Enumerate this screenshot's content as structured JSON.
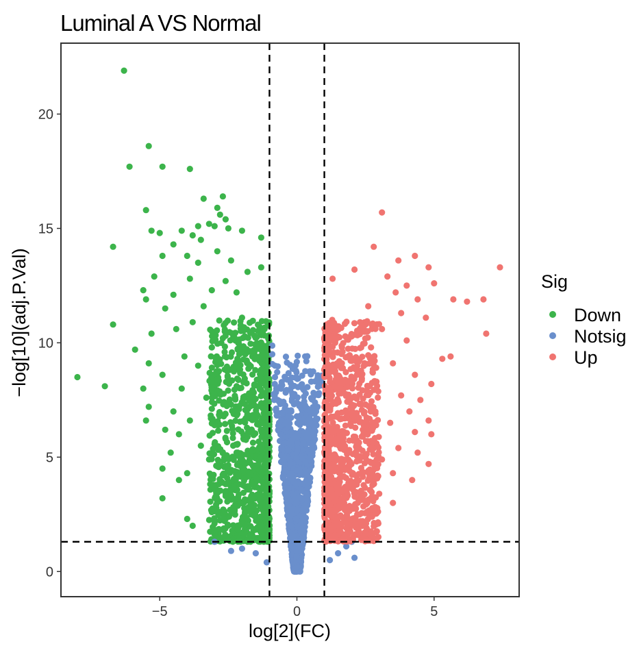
{
  "chart_data": {
    "type": "scatter",
    "title": "Luminal A VS Normal",
    "xlabel": "log[2](FC)",
    "ylabel": "−log[10](adj.P.Val)",
    "xlim": [
      -8.6,
      8.1
    ],
    "ylim": [
      -1.1,
      23.1
    ],
    "x_ticks": [
      -5,
      0,
      5
    ],
    "x_tick_labels": [
      "−5",
      "0",
      "5"
    ],
    "y_ticks": [
      0,
      5,
      10,
      15,
      20
    ],
    "y_tick_labels": [
      "0",
      "5",
      "10",
      "15",
      "20"
    ],
    "grid": false,
    "thresholds": {
      "log2fc": [
        -1,
        1
      ],
      "neg_log10_padj": 1.3
    },
    "legend": {
      "title": "Sig",
      "position": "right",
      "entries": [
        {
          "name": "Down",
          "color": "#3cb44b"
        },
        {
          "name": "Notsig",
          "color": "#6a8fcc"
        },
        {
          "name": "Up",
          "color": "#f07470"
        }
      ]
    },
    "series": [
      {
        "name": "Down",
        "color": "#3cb44b",
        "points": [
          [
            -6.3,
            21.9
          ],
          [
            -5.4,
            18.6
          ],
          [
            -6.1,
            17.7
          ],
          [
            -4.9,
            17.7
          ],
          [
            -3.9,
            17.6
          ],
          [
            -2.7,
            16.4
          ],
          [
            -3.4,
            16.3
          ],
          [
            -2.9,
            15.9
          ],
          [
            -2.8,
            15.6
          ],
          [
            -5.5,
            15.8
          ],
          [
            -3.2,
            15.2
          ],
          [
            -2.6,
            15.4
          ],
          [
            -3.6,
            15.1
          ],
          [
            -2.5,
            15.0
          ],
          [
            -5.3,
            14.9
          ],
          [
            -5.0,
            14.8
          ],
          [
            -4.2,
            14.9
          ],
          [
            -3.0,
            15.1
          ],
          [
            -3.8,
            14.7
          ],
          [
            -2.0,
            14.9
          ],
          [
            -4.5,
            14.3
          ],
          [
            -3.5,
            14.5
          ],
          [
            -1.3,
            14.6
          ],
          [
            -6.7,
            14.2
          ],
          [
            -4.0,
            13.8
          ],
          [
            -2.9,
            14.0
          ],
          [
            -2.4,
            13.6
          ],
          [
            -4.9,
            13.8
          ],
          [
            -3.6,
            13.5
          ],
          [
            -1.8,
            13.1
          ],
          [
            -1.3,
            13.3
          ],
          [
            -5.2,
            12.9
          ],
          [
            -3.9,
            12.8
          ],
          [
            -2.6,
            12.7
          ],
          [
            -3.1,
            12.3
          ],
          [
            -4.5,
            12.1
          ],
          [
            -5.6,
            12.3
          ],
          [
            -5.5,
            11.9
          ],
          [
            -2.2,
            12.2
          ],
          [
            -3.4,
            11.6
          ],
          [
            -4.8,
            11.5
          ],
          [
            -6.7,
            10.8
          ],
          [
            -2.0,
            11.1
          ],
          [
            -3.8,
            10.9
          ],
          [
            -4.4,
            10.6
          ],
          [
            -5.3,
            10.4
          ],
          [
            -2.7,
            10.2
          ],
          [
            -3.1,
            9.8
          ],
          [
            -5.9,
            9.7
          ],
          [
            -4.1,
            9.4
          ],
          [
            -2.1,
            9.5
          ],
          [
            -5.4,
            9.1
          ],
          [
            -3.6,
            9.0
          ],
          [
            -4.9,
            8.6
          ],
          [
            -2.9,
            8.4
          ],
          [
            -8.0,
            8.5
          ],
          [
            -5.6,
            8.0
          ],
          [
            -7.0,
            8.1
          ],
          [
            -4.2,
            8.0
          ],
          [
            -3.3,
            7.6
          ],
          [
            -5.4,
            7.2
          ],
          [
            -4.5,
            7.0
          ],
          [
            -2.4,
            7.3
          ],
          [
            -5.5,
            6.6
          ],
          [
            -3.9,
            6.6
          ],
          [
            -4.8,
            6.2
          ],
          [
            -3.0,
            6.4
          ],
          [
            -4.3,
            6.0
          ],
          [
            -2.6,
            5.8
          ],
          [
            -3.5,
            5.5
          ],
          [
            -4.6,
            5.2
          ],
          [
            -3.2,
            4.9
          ],
          [
            -2.2,
            5.2
          ],
          [
            -4.9,
            4.5
          ],
          [
            -4.0,
            4.3
          ],
          [
            -4.3,
            4.0
          ],
          [
            -3.0,
            3.6
          ],
          [
            -4.9,
            3.2
          ],
          [
            -2.6,
            3.3
          ],
          [
            -3.1,
            2.6
          ],
          [
            -4.0,
            2.3
          ],
          [
            -3.8,
            2.0
          ],
          [
            -2.0,
            2.2
          ],
          [
            -1.3,
            2.0
          ],
          [
            -1.7,
            1.6
          ],
          [
            -2.5,
            1.4
          ],
          [
            -1.5,
            1.4
          ]
        ],
        "cluster": {
          "x_range": [
            -3.2,
            -1.0
          ],
          "y_range": [
            1.3,
            11.0
          ],
          "count": 1000
        }
      },
      {
        "name": "Notsig",
        "color": "#6a8fcc",
        "points": [
          [
            -0.9,
            9.5
          ],
          [
            -0.8,
            9.0
          ],
          [
            -0.8,
            8.5
          ],
          [
            -0.75,
            8.0
          ],
          [
            -0.7,
            7.5
          ],
          [
            -0.75,
            7.0
          ],
          [
            -0.65,
            6.5
          ],
          [
            -0.6,
            6.0
          ],
          [
            -0.55,
            5.4
          ],
          [
            -0.5,
            4.9
          ],
          [
            -0.45,
            4.4
          ],
          [
            -0.4,
            3.9
          ],
          [
            -0.35,
            3.4
          ],
          [
            -0.3,
            2.9
          ],
          [
            -0.25,
            2.4
          ],
          [
            -0.2,
            2.0
          ],
          [
            -0.15,
            1.5
          ],
          [
            -0.1,
            1.0
          ],
          [
            0.0,
            0.2
          ],
          [
            0.1,
            0.9
          ],
          [
            0.15,
            1.4
          ],
          [
            0.2,
            1.9
          ],
          [
            0.25,
            2.4
          ],
          [
            0.3,
            2.9
          ],
          [
            0.35,
            3.4
          ],
          [
            0.4,
            3.9
          ],
          [
            0.45,
            4.4
          ],
          [
            0.5,
            4.9
          ],
          [
            0.55,
            5.4
          ],
          [
            0.6,
            6.0
          ],
          [
            0.7,
            6.6
          ],
          [
            0.75,
            7.2
          ],
          [
            0.8,
            7.8
          ],
          [
            0.85,
            8.2
          ],
          [
            0.9,
            8.5
          ],
          [
            -3.0,
            1.3
          ],
          [
            -2.0,
            1.0
          ],
          [
            -1.5,
            0.8
          ],
          [
            1.5,
            0.8
          ],
          [
            2.1,
            0.6
          ],
          [
            1.8,
            1.1
          ],
          [
            2.0,
            1.3
          ],
          [
            -2.4,
            0.9
          ],
          [
            1.2,
            0.5
          ],
          [
            -1.1,
            0.4
          ]
        ],
        "cluster": {
          "x_range": [
            -1.0,
            1.0
          ],
          "y_range": [
            0.0,
            10.0
          ],
          "count": 1200
        }
      },
      {
        "name": "Up",
        "color": "#f07470",
        "points": [
          [
            3.1,
            15.7
          ],
          [
            2.8,
            14.2
          ],
          [
            4.3,
            13.8
          ],
          [
            3.7,
            13.6
          ],
          [
            7.4,
            13.3
          ],
          [
            2.1,
            13.2
          ],
          [
            4.8,
            13.3
          ],
          [
            3.3,
            12.9
          ],
          [
            1.3,
            12.8
          ],
          [
            4.0,
            12.5
          ],
          [
            5.0,
            12.6
          ],
          [
            3.6,
            12.2
          ],
          [
            4.4,
            11.9
          ],
          [
            5.7,
            11.9
          ],
          [
            6.2,
            11.8
          ],
          [
            6.8,
            11.9
          ],
          [
            2.6,
            11.6
          ],
          [
            3.8,
            11.3
          ],
          [
            4.7,
            11.1
          ],
          [
            2.3,
            10.9
          ],
          [
            3.1,
            10.6
          ],
          [
            6.9,
            10.4
          ],
          [
            4.0,
            10.1
          ],
          [
            2.7,
            9.8
          ],
          [
            5.3,
            9.3
          ],
          [
            5.6,
            9.4
          ],
          [
            3.5,
            9.1
          ],
          [
            4.3,
            8.6
          ],
          [
            2.9,
            8.3
          ],
          [
            4.9,
            8.2
          ],
          [
            3.8,
            7.7
          ],
          [
            4.5,
            7.5
          ],
          [
            2.5,
            7.3
          ],
          [
            4.1,
            7.0
          ],
          [
            4.8,
            6.6
          ],
          [
            3.4,
            6.5
          ],
          [
            4.3,
            6.1
          ],
          [
            4.9,
            6.0
          ],
          [
            2.9,
            5.6
          ],
          [
            3.7,
            5.4
          ],
          [
            4.4,
            5.2
          ],
          [
            3.1,
            4.9
          ],
          [
            4.8,
            4.7
          ],
          [
            2.6,
            4.4
          ],
          [
            3.5,
            4.3
          ],
          [
            4.2,
            4.0
          ],
          [
            3.0,
            3.4
          ],
          [
            3.5,
            3.0
          ],
          [
            2.8,
            2.7
          ],
          [
            2.4,
            2.2
          ],
          [
            1.8,
            1.9
          ],
          [
            2.2,
            1.6
          ],
          [
            1.4,
            1.5
          ],
          [
            2.5,
            1.4
          ]
        ],
        "cluster": {
          "x_range": [
            1.0,
            3.0
          ],
          "y_range": [
            1.3,
            11.0
          ],
          "count": 1000
        }
      }
    ]
  }
}
